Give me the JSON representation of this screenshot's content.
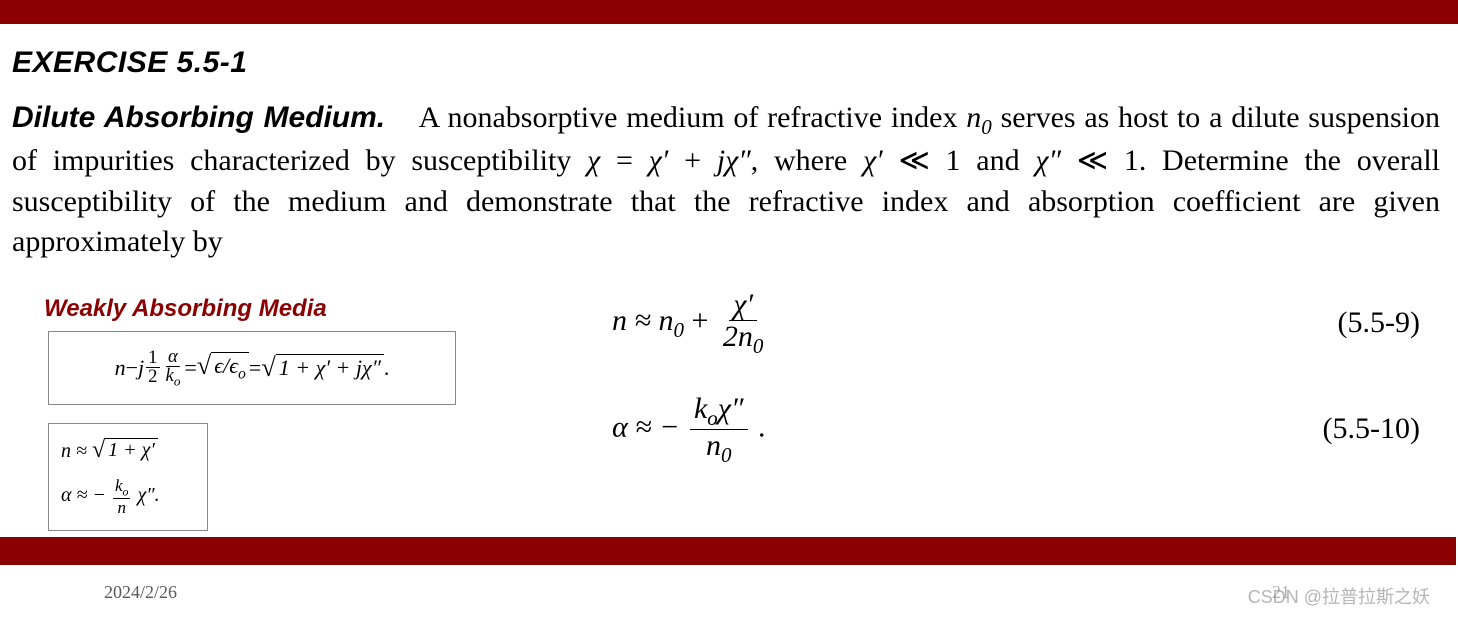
{
  "colors": {
    "accent": "#8b0000",
    "text": "#000000",
    "muted": "#595959",
    "box_border": "#888888",
    "background": "#ffffff"
  },
  "header": {
    "exercise_label": "EXERCISE 5.5-1"
  },
  "problem": {
    "lead_bold": "Dilute Absorbing Medium.",
    "text_1": "A nonabsorptive medium of refractive index ",
    "n0": "n",
    "n0_sub": "0",
    "text_2": " serves as host to a dilute suspension of impurities characterized by susceptibility ",
    "chi_eq_lhs": "χ",
    "eq_sign": " = ",
    "chi_prime": "χ′",
    "plus": " + ",
    "j": "j",
    "chi_dprime": "χ″",
    "text_3": ", where ",
    "ll": " ≪ 1",
    "and": " and ",
    "text_4": ". Determine the overall susceptibility of the medium and demonstrate that the refractive index and absorption coefficient are given approximately by"
  },
  "weakly": {
    "title": "Weakly Absorbing Media",
    "box1": {
      "lhs_n": "n",
      "minus": " − ",
      "j": "j",
      "half_num": "1",
      "half_den": "2",
      "alpha": "α",
      "k_o": "k",
      "k_o_sub": "o",
      "eq": " = ",
      "eps_ratio": "ϵ/ϵ",
      "eps_o_sub": "o",
      "one_plus": "1 + χ′ + jχ″",
      "dot": "."
    },
    "box2": {
      "line1_lhs": "n ≈ ",
      "line1_rad": "1 + χ′",
      "line2_lhs": "α ≈ −",
      "line2_num_k": "k",
      "line2_num_ksub": "o",
      "line2_den": "n",
      "line2_tail": "χ″."
    }
  },
  "equations": {
    "eq1": {
      "lhs": "n ≈ n",
      "lhs_sub": "0",
      "plus": " + ",
      "num": "χ′",
      "den_pre": "2n",
      "den_sub": "0",
      "number": "(5.5-9)"
    },
    "eq2": {
      "lhs": "α ≈ − ",
      "num_k": "k",
      "num_ksub": "o",
      "num_tail": "χ″",
      "den": "n",
      "den_sub": "0",
      "dot": ".",
      "number": "(5.5-10)"
    }
  },
  "footer": {
    "date": "2024/2/26",
    "page": "21",
    "watermark": "CSDN @拉普拉斯之妖"
  }
}
